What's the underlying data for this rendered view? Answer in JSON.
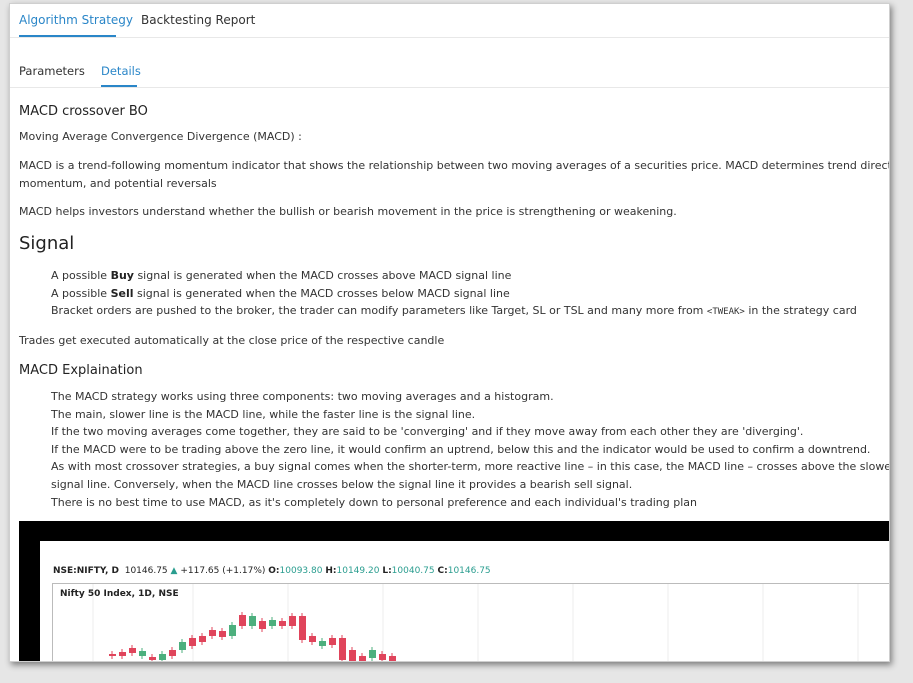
{
  "tabs": [
    "Algorithm Strategy",
    "Backtesting Report"
  ],
  "subtabs": [
    "Parameters",
    "Details"
  ],
  "strategy_title": "MACD crossover BO",
  "intro": "Moving Average Convergence Divergence (MACD) :",
  "para1_line1": "MACD is a trend-following momentum indicator that shows the relationship between two moving averages of a securities price. MACD determines trend direction,",
  "para1_line2": "momentum, and potential reversals",
  "para2": "MACD helps investors understand whether the bullish or bearish movement in the price is strengthening or weakening.",
  "signal_heading": "Signal",
  "signal": {
    "buy_pre": "A possible ",
    "buy_bold": "Buy",
    "buy_post": " signal is generated when the MACD crosses above MACD signal line",
    "sell_pre": "A possible ",
    "sell_bold": "Sell",
    "sell_post": " signal is generated when the MACD crosses below MACD signal line",
    "bracket_pre": "Bracket orders are pushed to the broker, the trader can modify parameters like Target, SL or TSL and many more from ",
    "bracket_code": "<TWEAK>",
    "bracket_post": " in the strategy card"
  },
  "trades_note": "Trades get executed automatically at the close price of the respective candle",
  "expl_heading": "MACD Explaination",
  "expl": [
    "The MACD strategy works using three components: two moving averages and a histogram.",
    "The main, slower line is the MACD line, while the faster line is the signal line.",
    "If the two moving averages come together, they are said to be 'converging' and if they move away from each other they are 'diverging'.",
    "If the MACD were to be trading above the zero line, it would confirm an uptrend, below this and the indicator would be used to confirm a downtrend.",
    "As with most crossover strategies, a buy signal comes when the shorter-term, more reactive line – in this case, the MACD line – crosses above the slower line – the",
    "signal line. Conversely, when the MACD line crosses below the signal line it provides a bearish sell signal.",
    "There is no best time to use MACD, as it's completely down to personal preference and each individual's trading plan"
  ],
  "chart": {
    "symbol": "NSE:NIFTY, D",
    "last": "10146.75",
    "change": "+117.65 (+1.17%)",
    "o_label": "O:",
    "o": "10093.80",
    "h_label": "H:",
    "h": "10149.20",
    "l_label": "L:",
    "l": "10040.75",
    "c_label": "C:",
    "c": "10146.75",
    "title": "Nifty 50 Index, 1D, NSE",
    "up_color": "#4caf7d",
    "down_color": "#e0445b",
    "change_color": "#2a9d8f"
  }
}
